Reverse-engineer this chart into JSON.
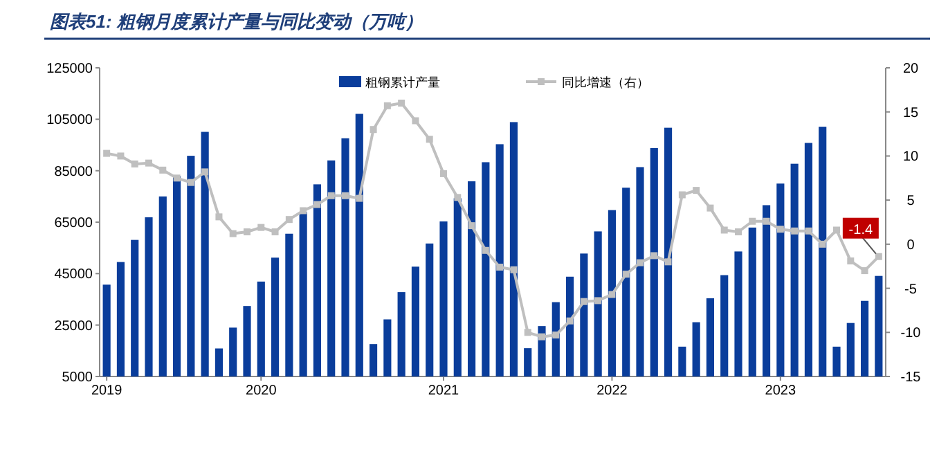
{
  "chart_data": {
    "type": "bar",
    "title": "图表51: 粗钢月度累计产量与同比变动（万吨）",
    "categories": [
      "2019",
      null,
      null,
      null,
      null,
      null,
      null,
      null,
      null,
      null,
      null,
      "2020",
      null,
      null,
      null,
      null,
      null,
      null,
      null,
      null,
      null,
      null,
      null,
      null,
      "2021",
      null,
      null,
      null,
      null,
      null,
      null,
      null,
      null,
      null,
      null,
      null,
      "2022",
      null,
      null,
      null,
      null,
      null,
      null,
      null,
      null,
      null,
      null,
      null,
      "2023",
      null,
      null,
      null,
      null,
      null,
      null,
      null
    ],
    "series": [
      {
        "name": "粗钢累计产量",
        "color": "#0a3d9b",
        "values": [
          40700,
          49500,
          58100,
          66900,
          75000,
          82900,
          90800,
          100100,
          15900,
          24000,
          32400,
          41900,
          51200,
          60500,
          68900,
          79700,
          89000,
          97600,
          107100,
          17600,
          27200,
          37800,
          47700,
          56700,
          65300,
          74300,
          80900,
          88300,
          95300,
          103900,
          16000,
          24600,
          33900,
          43800,
          52800,
          61400,
          69700,
          78400,
          86400,
          93800,
          101700,
          16600,
          26100,
          35400,
          44400,
          53600,
          62900,
          71600,
          80000,
          87700,
          95800,
          102100,
          16600,
          25800,
          34400,
          44100
        ]
      },
      {
        "name": "同比增速（右）",
        "type": "line",
        "axis": "y2",
        "color": "#bfbfbf",
        "marker": "square",
        "values": [
          10.3,
          10.0,
          9.1,
          9.2,
          8.4,
          7.5,
          7.0,
          8.2,
          3.1,
          1.2,
          1.4,
          1.9,
          1.4,
          2.8,
          3.8,
          4.5,
          5.5,
          5.5,
          5.2,
          13.0,
          15.7,
          16.0,
          14.0,
          11.9,
          8.0,
          5.3,
          2.1,
          -0.7,
          -2.6,
          -2.9,
          -10.0,
          -10.5,
          -10.3,
          -8.7,
          -6.5,
          -6.4,
          -5.7,
          -3.4,
          -2.1,
          -1.3,
          -2.0,
          5.6,
          6.1,
          4.1,
          1.6,
          1.4,
          2.6,
          2.6,
          1.7,
          1.5,
          1.5,
          0.0,
          1.6,
          -1.9,
          -3.0,
          -1.4
        ],
        "value_labels": [
          null,
          null,
          null,
          null,
          null,
          null,
          null,
          null,
          null,
          null,
          null,
          null,
          null,
          null,
          null,
          null,
          null,
          null,
          null,
          null,
          null,
          null,
          null,
          null,
          null,
          null,
          null,
          null,
          null,
          null,
          null,
          null,
          null,
          null,
          null,
          null,
          null,
          null,
          null,
          null,
          null,
          null,
          null,
          null,
          null,
          null,
          null,
          null,
          null,
          null,
          null,
          null,
          null,
          null,
          null,
          "-1.4"
        ]
      }
    ],
    "ylim": [
      5000,
      125000
    ],
    "yticks": [
      5000,
      25000,
      45000,
      65000,
      85000,
      105000,
      125000
    ],
    "y2lim": [
      -15,
      20
    ],
    "y2ticks": [
      -15,
      -10,
      -5,
      0,
      5,
      10,
      15,
      20
    ],
    "legend": "top",
    "grid": false
  }
}
